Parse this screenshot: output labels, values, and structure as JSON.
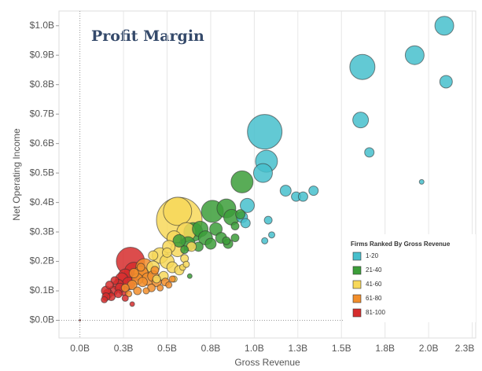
{
  "chart_data": {
    "type": "scatter",
    "title": "Profit Margin",
    "x_label": "Gross Revenue",
    "y_label": "Net Operating Income",
    "legend_title": "Firms Ranked By Gross Revenue",
    "legend": "lower right",
    "grid": true,
    "xlim": [
      -0.12,
      2.27
    ],
    "ylim": [
      -0.06,
      1.05
    ],
    "xticks": [
      {
        "value": 0,
        "label": "0.0B"
      },
      {
        "value": 0.25,
        "label": "0.3B"
      },
      {
        "value": 0.5,
        "label": "0.5B"
      },
      {
        "value": 0.75,
        "label": "0.8B"
      },
      {
        "value": 1.0,
        "label": "1.0B"
      },
      {
        "value": 1.25,
        "label": "1.3B"
      },
      {
        "value": 1.5,
        "label": "1.5B"
      },
      {
        "value": 1.75,
        "label": "1.8B"
      },
      {
        "value": 2.0,
        "label": "2.0B"
      },
      {
        "value": 2.25,
        "label": "2.3B"
      }
    ],
    "yticks": [
      {
        "value": 0,
        "label": "$0.0B"
      },
      {
        "value": 0.1,
        "label": "$0.1B"
      },
      {
        "value": 0.2,
        "label": "$0.2B"
      },
      {
        "value": 0.3,
        "label": "$0.3B"
      },
      {
        "value": 0.4,
        "label": "$0.4B"
      },
      {
        "value": 0.5,
        "label": "$0.5B"
      },
      {
        "value": 0.6,
        "label": "$0.6B"
      },
      {
        "value": 0.7,
        "label": "$0.7B"
      },
      {
        "value": 0.8,
        "label": "$0.8B"
      },
      {
        "value": 0.9,
        "label": "$0.9B"
      },
      {
        "value": 1.0,
        "label": "$1.0B"
      }
    ],
    "series": [
      {
        "name": "1-20",
        "color": "#47bfcc",
        "x": [
          2.09,
          1.92,
          1.62,
          2.1,
          1.61,
          1.66,
          1.06,
          1.07,
          1.05,
          1.18,
          1.24,
          1.28,
          1.34,
          1.96,
          0.96,
          1.08,
          0.93,
          0.95,
          1.1,
          1.06
        ],
        "values": [
          1.0,
          0.9,
          0.86,
          0.81,
          0.68,
          0.57,
          0.64,
          0.54,
          0.5,
          0.44,
          0.42,
          0.42,
          0.44,
          0.47,
          0.39,
          0.34,
          0.35,
          0.33,
          0.29,
          0.27
        ],
        "sizes": [
          12,
          12,
          16,
          8,
          10,
          6,
          22,
          14,
          12,
          7,
          6,
          6,
          6,
          3,
          9,
          5,
          7,
          6,
          4,
          4
        ]
      },
      {
        "name": "21-40",
        "color": "#3c9e3a",
        "x": [
          0.93,
          0.76,
          0.84,
          0.87,
          0.65,
          0.69,
          0.72,
          0.78,
          0.81,
          0.85,
          0.89,
          0.62,
          0.57,
          0.75,
          0.84,
          0.89,
          0.68,
          0.6,
          0.63,
          0.92
        ],
        "values": [
          0.47,
          0.37,
          0.38,
          0.35,
          0.3,
          0.31,
          0.28,
          0.31,
          0.28,
          0.26,
          0.32,
          0.26,
          0.27,
          0.26,
          0.27,
          0.28,
          0.25,
          0.24,
          0.15,
          0.36
        ],
        "sizes": [
          14,
          14,
          12,
          10,
          12,
          10,
          9,
          8,
          7,
          6,
          5,
          9,
          8,
          7,
          5,
          5,
          6,
          5,
          3,
          6
        ]
      },
      {
        "name": "41-60",
        "color": "#f7d85a",
        "x": [
          0.57,
          0.56,
          0.61,
          0.54,
          0.51,
          0.56,
          0.46,
          0.5,
          0.57,
          0.53,
          0.42,
          0.48,
          0.64,
          0.42,
          0.6,
          0.44,
          0.54,
          0.59,
          0.5,
          0.61
        ],
        "values": [
          0.34,
          0.37,
          0.3,
          0.28,
          0.25,
          0.24,
          0.22,
          0.2,
          0.17,
          0.18,
          0.18,
          0.15,
          0.25,
          0.22,
          0.21,
          0.14,
          0.14,
          0.18,
          0.23,
          0.19
        ],
        "sizes": [
          29,
          18,
          12,
          9,
          8,
          9,
          10,
          9,
          6,
          7,
          8,
          6,
          6,
          6,
          5,
          5,
          4,
          4,
          6,
          4
        ]
      },
      {
        "name": "61-80",
        "color": "#f28e2b",
        "x": [
          0.37,
          0.35,
          0.42,
          0.39,
          0.33,
          0.31,
          0.44,
          0.49,
          0.36,
          0.3,
          0.41,
          0.51,
          0.33,
          0.26,
          0.46,
          0.38,
          0.53,
          0.28,
          0.43,
          0.35
        ],
        "values": [
          0.18,
          0.16,
          0.15,
          0.14,
          0.14,
          0.16,
          0.13,
          0.13,
          0.13,
          0.12,
          0.11,
          0.12,
          0.1,
          0.11,
          0.11,
          0.1,
          0.14,
          0.09,
          0.17,
          0.18
        ],
        "sizes": [
          11,
          9,
          7,
          8,
          7,
          6,
          6,
          5,
          6,
          6,
          5,
          4,
          5,
          5,
          4,
          4,
          4,
          4,
          5,
          5
        ]
      },
      {
        "name": "81-100",
        "color": "#d62d2d",
        "x": [
          0.29,
          0.31,
          0.26,
          0.24,
          0.28,
          0.22,
          0.19,
          0.16,
          0.15,
          0.18,
          0.25,
          0.22,
          0.15,
          0.23,
          0.2,
          0.17,
          0.3,
          0.26,
          0.14,
          0.0
        ],
        "values": [
          0.2,
          0.165,
          0.15,
          0.14,
          0.125,
          0.12,
          0.1,
          0.09,
          0.1,
          0.08,
          0.1,
          0.09,
          0.08,
          0.11,
          0.135,
          0.12,
          0.055,
          0.075,
          0.07,
          0.0
        ],
        "sizes": [
          18,
          12,
          9,
          8,
          8,
          7,
          6,
          6,
          6,
          5,
          6,
          5,
          5,
          6,
          5,
          5,
          3,
          4,
          4,
          1
        ]
      }
    ]
  }
}
